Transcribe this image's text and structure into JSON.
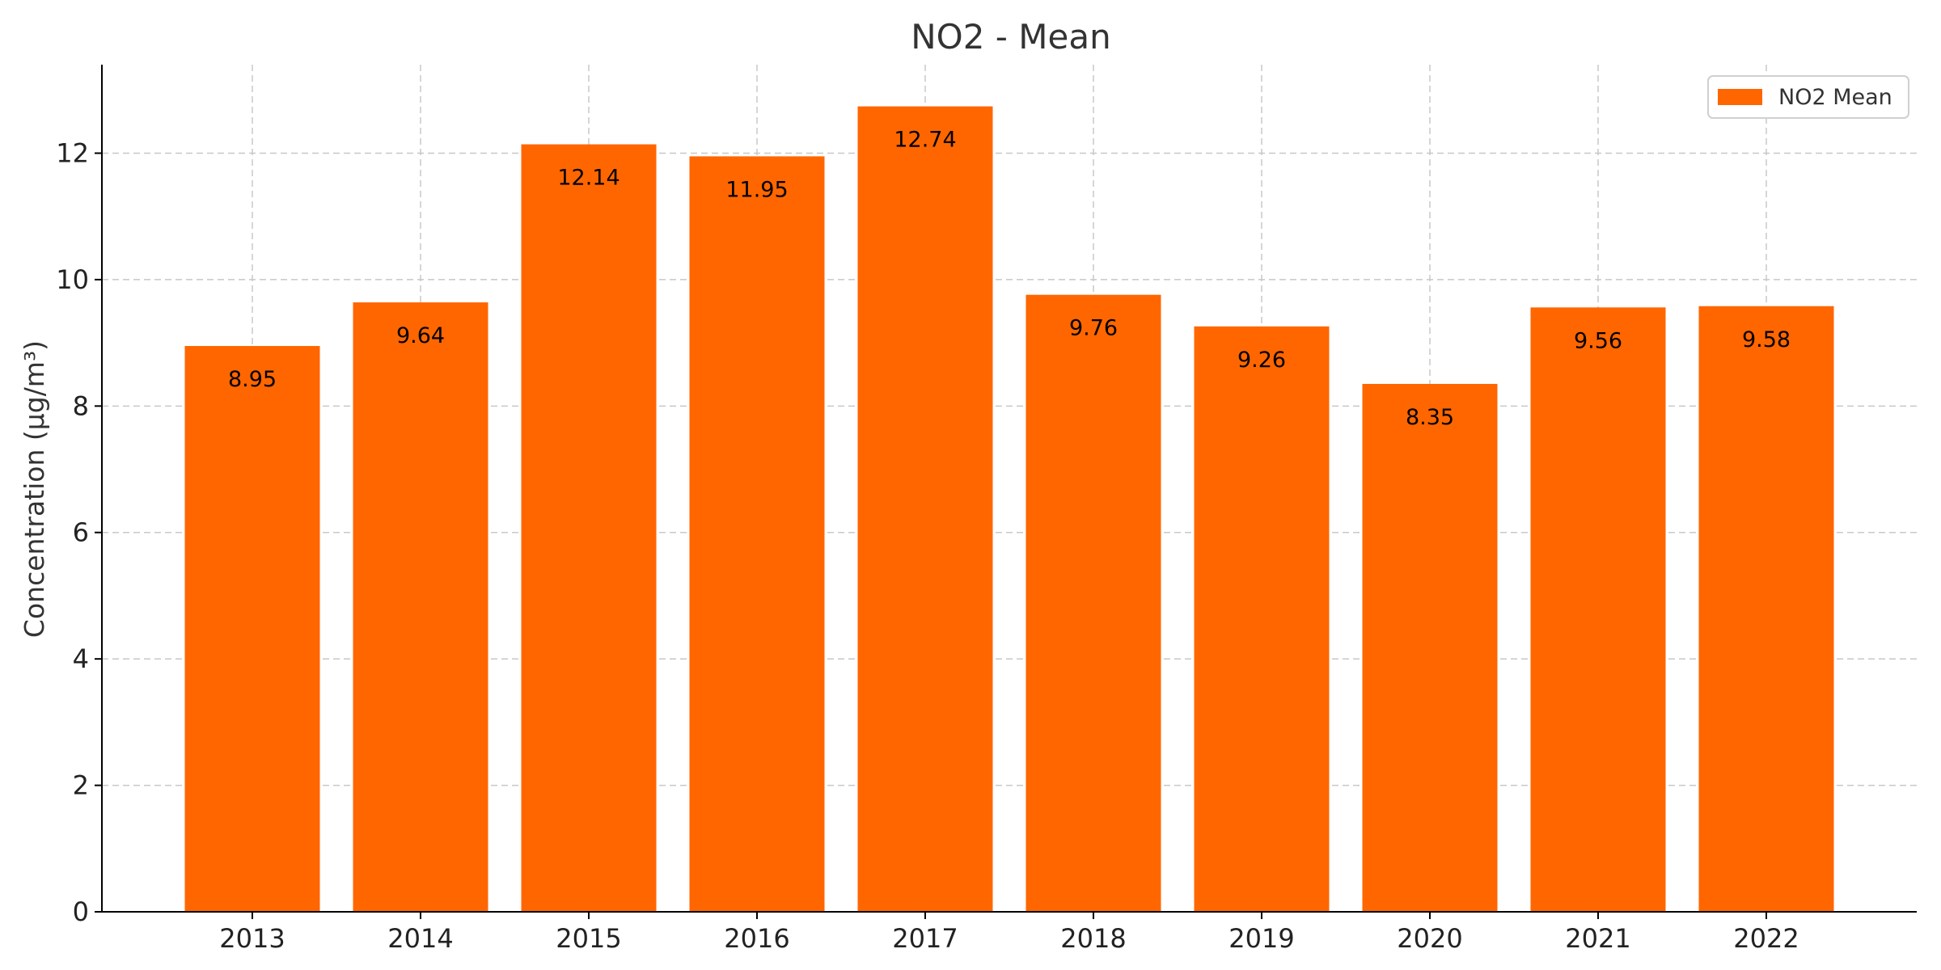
{
  "chart_data": {
    "type": "bar",
    "title": "NO2 - Mean",
    "xlabel": "",
    "ylabel": "Concentration (μg/m³)",
    "categories": [
      "2013",
      "2014",
      "2015",
      "2016",
      "2017",
      "2018",
      "2019",
      "2020",
      "2021",
      "2022"
    ],
    "series": [
      {
        "name": "NO2 Mean",
        "values": [
          8.95,
          9.64,
          12.14,
          11.95,
          12.74,
          9.76,
          9.26,
          8.35,
          9.56,
          9.58
        ],
        "data_labels": [
          "8.95",
          "9.64",
          "12.14",
          "11.95",
          "12.74",
          "9.76",
          "9.26",
          "8.35",
          "9.56",
          "9.58"
        ]
      }
    ],
    "ylim": [
      0,
      13.4
    ],
    "yticks": [
      0,
      2,
      4,
      6,
      8,
      10,
      12
    ],
    "ytick_labels": [
      "0",
      "2",
      "4",
      "6",
      "8",
      "10",
      "12"
    ],
    "grid": true,
    "legend_position": "top-right",
    "colors": {
      "bar": "#ff6600",
      "grid": "#c8c8c8",
      "axis": "#000000"
    }
  }
}
